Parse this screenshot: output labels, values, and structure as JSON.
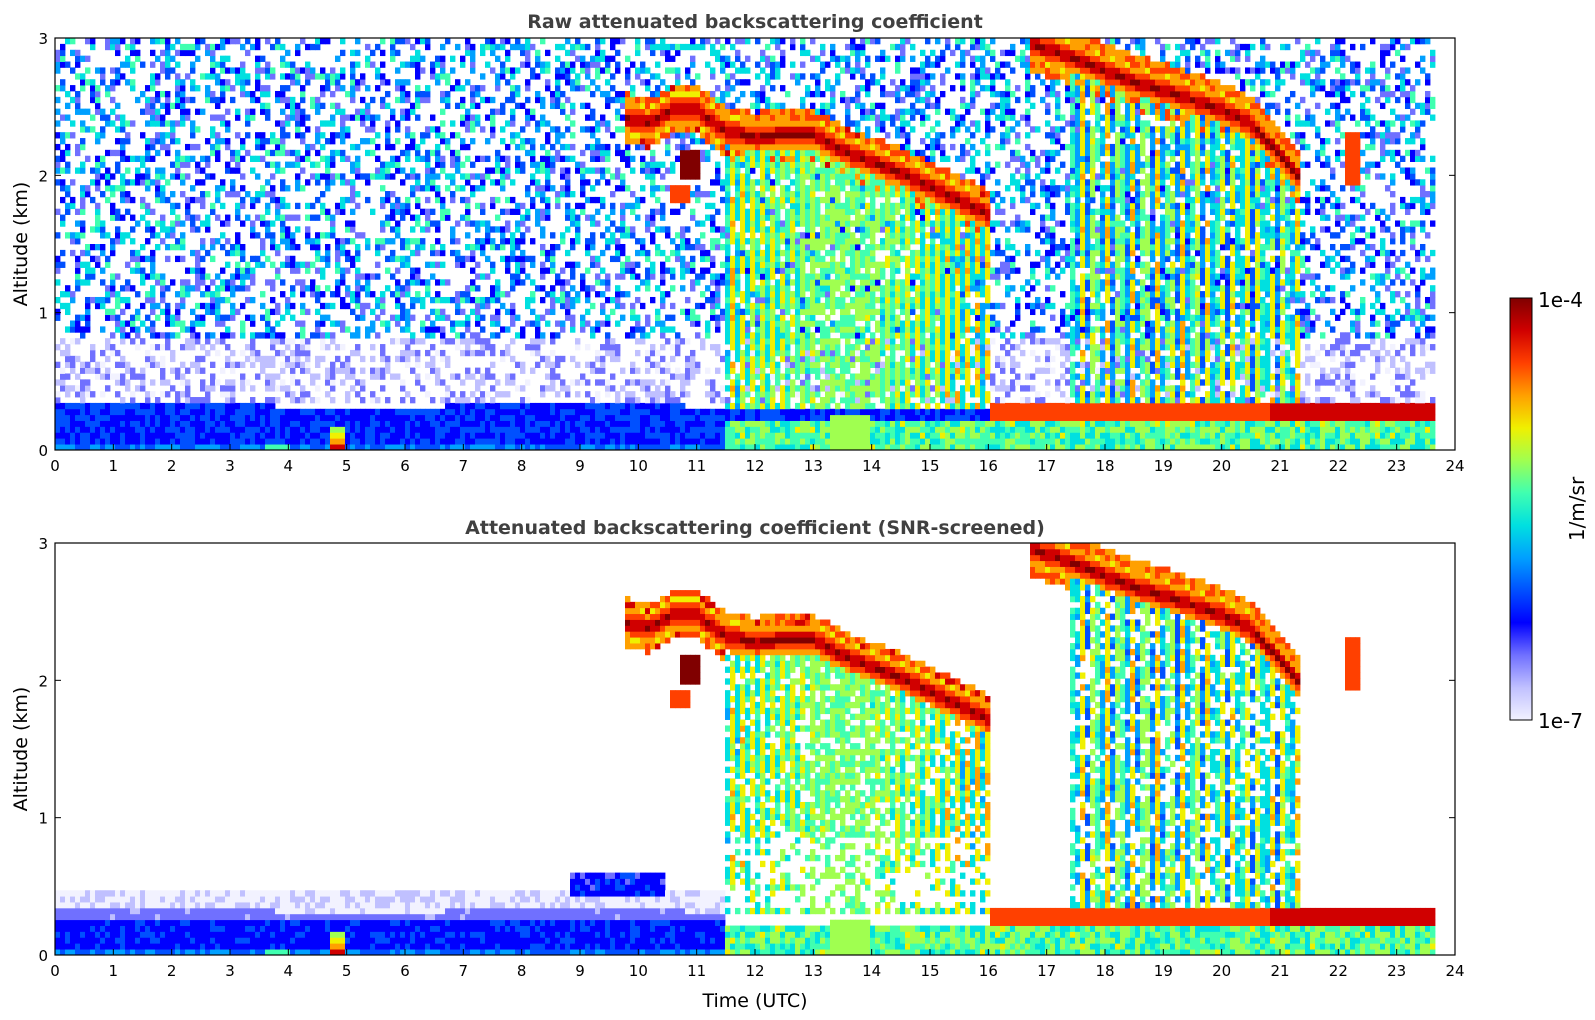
{
  "chart_data": [
    {
      "type": "heatmap",
      "title": "Raw attenuated backscattering coefficient",
      "xlabel": "",
      "ylabel": "Altitude (km)",
      "xlim": [
        0,
        24
      ],
      "ylim": [
        0,
        3
      ],
      "xticks": [
        "0",
        "1",
        "2",
        "3",
        "4",
        "5",
        "6",
        "7",
        "8",
        "9",
        "10",
        "11",
        "12",
        "13",
        "14",
        "15",
        "16",
        "17",
        "18",
        "19",
        "20",
        "21",
        "22",
        "23",
        "24"
      ],
      "yticks": [
        "0",
        "1",
        "2",
        "3"
      ],
      "data_end_hour": 23.65,
      "features": [
        {
          "type": "cloud-layer",
          "x": [
            9.8,
            10.2,
            10.6,
            11.0,
            11.5,
            12.0,
            12.5,
            13.0,
            13.5,
            14.0,
            14.5,
            15.0,
            15.5,
            16.0
          ],
          "y": [
            2.42,
            2.38,
            2.48,
            2.48,
            2.32,
            2.28,
            2.3,
            2.3,
            2.18,
            2.1,
            2.02,
            1.92,
            1.82,
            1.72
          ],
          "value": 0.0001
        },
        {
          "type": "cloud-layer",
          "x": [
            16.8,
            17.5,
            18.0,
            18.5,
            19.0,
            19.5,
            20.0,
            20.5,
            21.0,
            21.3
          ],
          "y": [
            2.95,
            2.85,
            2.76,
            2.68,
            2.62,
            2.55,
            2.48,
            2.38,
            2.15,
            2.0
          ],
          "value": 0.0001
        },
        {
          "type": "cloud-patch",
          "x": [
            10.6,
            11.0
          ],
          "y": [
            2.08,
            2.08
          ],
          "value": 0.0001
        },
        {
          "type": "cloud-patch",
          "x": [
            10.6,
            10.8
          ],
          "y": [
            1.88,
            1.88
          ],
          "value": 8e-05
        },
        {
          "type": "boundary-layer",
          "x": [
            16.0,
            17.0,
            18.0,
            19.0,
            20.0,
            21.0,
            22.0,
            23.0,
            23.6
          ],
          "y": [
            0.27,
            0.27,
            0.27,
            0.27,
            0.27,
            0.27,
            0.27,
            0.3,
            0.32
          ],
          "value": 9e-05
        },
        {
          "type": "aerosol-spot",
          "x": [
            4.8,
            4.9
          ],
          "y": [
            0.08,
            0.08
          ],
          "value": 3e-05
        }
      ]
    },
    {
      "type": "heatmap",
      "title": "Attenuated backscattering coefficient (SNR-screened)",
      "xlabel": "Time (UTC)",
      "ylabel": "Altitude (km)",
      "xlim": [
        0,
        24
      ],
      "ylim": [
        0,
        3
      ],
      "xticks": [
        "0",
        "1",
        "2",
        "3",
        "4",
        "5",
        "6",
        "7",
        "8",
        "9",
        "10",
        "11",
        "12",
        "13",
        "14",
        "15",
        "16",
        "17",
        "18",
        "19",
        "20",
        "21",
        "22",
        "23",
        "24"
      ],
      "yticks": [
        "0",
        "1",
        "2",
        "3"
      ],
      "data_end_hour": 23.65
    }
  ],
  "colorbar": {
    "label": "1/m/sr",
    "max_label": "1e-4",
    "min_label": "1e-7",
    "vmin": 1e-07,
    "vmax": 0.0001,
    "colormap": "jet",
    "stops": [
      "#f2f2ff",
      "#c0c0ff",
      "#7070ff",
      "#0000ff",
      "#0050ff",
      "#00a0ff",
      "#00e0e0",
      "#40ffb0",
      "#a0ff50",
      "#f0f000",
      "#ffa000",
      "#ff4000",
      "#d00000",
      "#800000"
    ]
  }
}
